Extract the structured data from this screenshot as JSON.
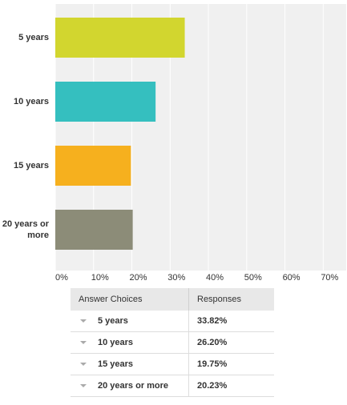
{
  "chart_data": {
    "type": "bar",
    "orientation": "horizontal",
    "categories": [
      "5 years",
      "10 years",
      "15 years",
      "20 years or more"
    ],
    "values": [
      33.82,
      26.2,
      19.75,
      20.23
    ],
    "value_labels": [
      "33.82%",
      "26.20%",
      "19.75%",
      "20.23%"
    ],
    "colors": [
      "#d2d62f",
      "#35bfbf",
      "#f6b01e",
      "#8c8c78"
    ],
    "xlim": [
      0,
      76
    ],
    "xticks": [
      {
        "value": 0,
        "label": "0%"
      },
      {
        "value": 10,
        "label": "10%"
      },
      {
        "value": 20,
        "label": "20%"
      },
      {
        "value": 30,
        "label": "30%"
      },
      {
        "value": 40,
        "label": "40%"
      },
      {
        "value": 50,
        "label": "50%"
      },
      {
        "value": 60,
        "label": "60%"
      },
      {
        "value": 70,
        "label": "70%"
      }
    ],
    "grid": true
  },
  "table": {
    "headers": [
      "Answer Choices",
      "Responses"
    ]
  }
}
